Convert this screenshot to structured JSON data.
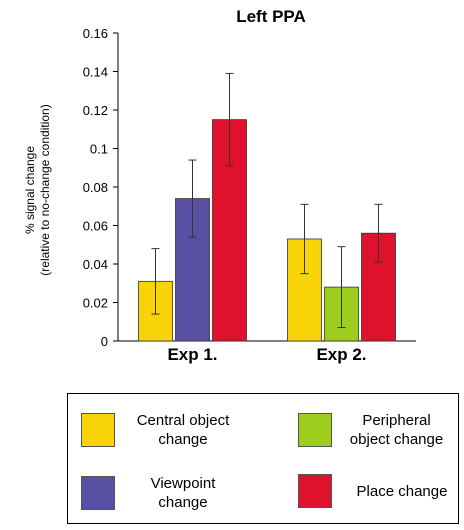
{
  "chart_data": {
    "type": "bar",
    "title": "Left PPA",
    "ylabel_line1": "% signal change",
    "ylabel_line2": "(relative to no-change condition)",
    "ylim": [
      0,
      0.16
    ],
    "yticks": [
      "0",
      "0.02",
      "0.04",
      "0.06",
      "0.08",
      "0.1",
      "0.12",
      "0.14",
      "0.16"
    ],
    "ytick_values": [
      0,
      0.02,
      0.04,
      0.06,
      0.08,
      0.1,
      0.12,
      0.14,
      0.16
    ],
    "categories": [
      "Exp 1.",
      "Exp 2."
    ],
    "series": [
      {
        "name": "Central object change",
        "color": "#f7d308",
        "values": [
          0.031,
          0.053
        ],
        "errors": [
          0.017,
          0.018
        ]
      },
      {
        "name": "Viewpoint change",
        "color": "#5a50a3",
        "values": [
          0.074,
          null
        ],
        "errors": [
          0.02,
          null
        ]
      },
      {
        "name": "Peripheral object change",
        "color": "#9ccc1c",
        "values": [
          null,
          0.028
        ],
        "errors": [
          null,
          0.021
        ]
      },
      {
        "name": "Place change",
        "color": "#e0112d",
        "values": [
          0.115,
          0.056
        ],
        "errors": [
          0.024,
          0.015
        ]
      }
    ],
    "grid": false,
    "legend_placement": "bottom"
  },
  "legend": {
    "central_line1": "Central object",
    "central_line2": "change",
    "peripheral_line1": "Peripheral",
    "peripheral_line2": "object change",
    "viewpoint_line1": "Viewpoint",
    "viewpoint_line2": "change",
    "place_line1": "Place change"
  }
}
